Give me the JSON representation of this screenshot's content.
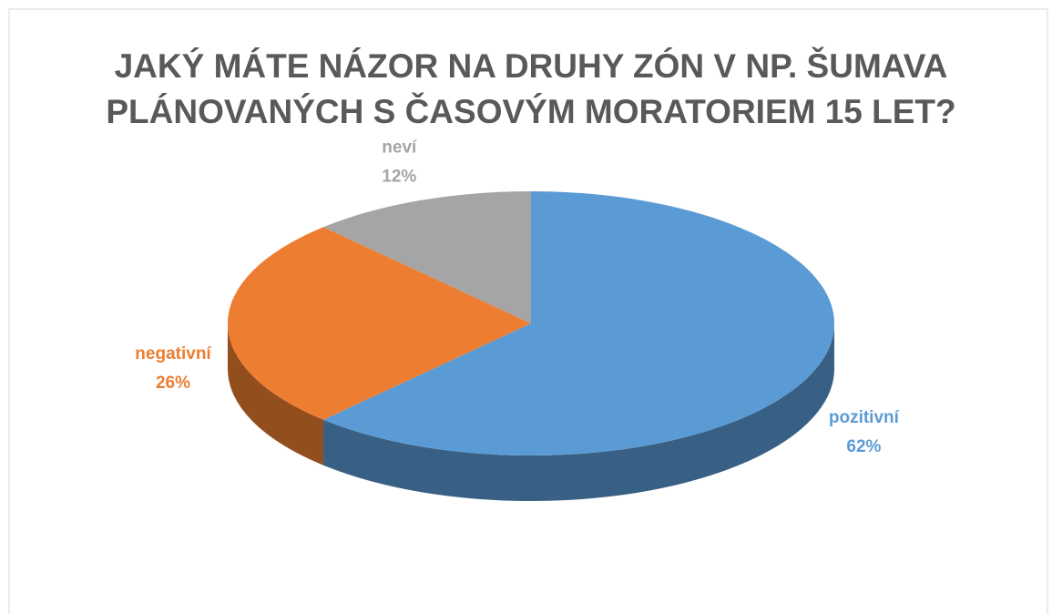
{
  "chart_data": {
    "type": "pie",
    "title": [
      "JAKÝ MÁTE NÁZOR NA DRUHY ZÓN V NP. ŠUMAVA",
      "PLÁNOVANÝCH S ČASOVÝM MORATORIEM 15 LET?"
    ],
    "categories": [
      "pozitivní",
      "negativní",
      "neví"
    ],
    "values": [
      62,
      26,
      12
    ],
    "value_labels": [
      "62%",
      "26%",
      "12%"
    ],
    "colors": [
      "#5b9bd5",
      "#ed7d31",
      "#a5a5a5"
    ]
  }
}
